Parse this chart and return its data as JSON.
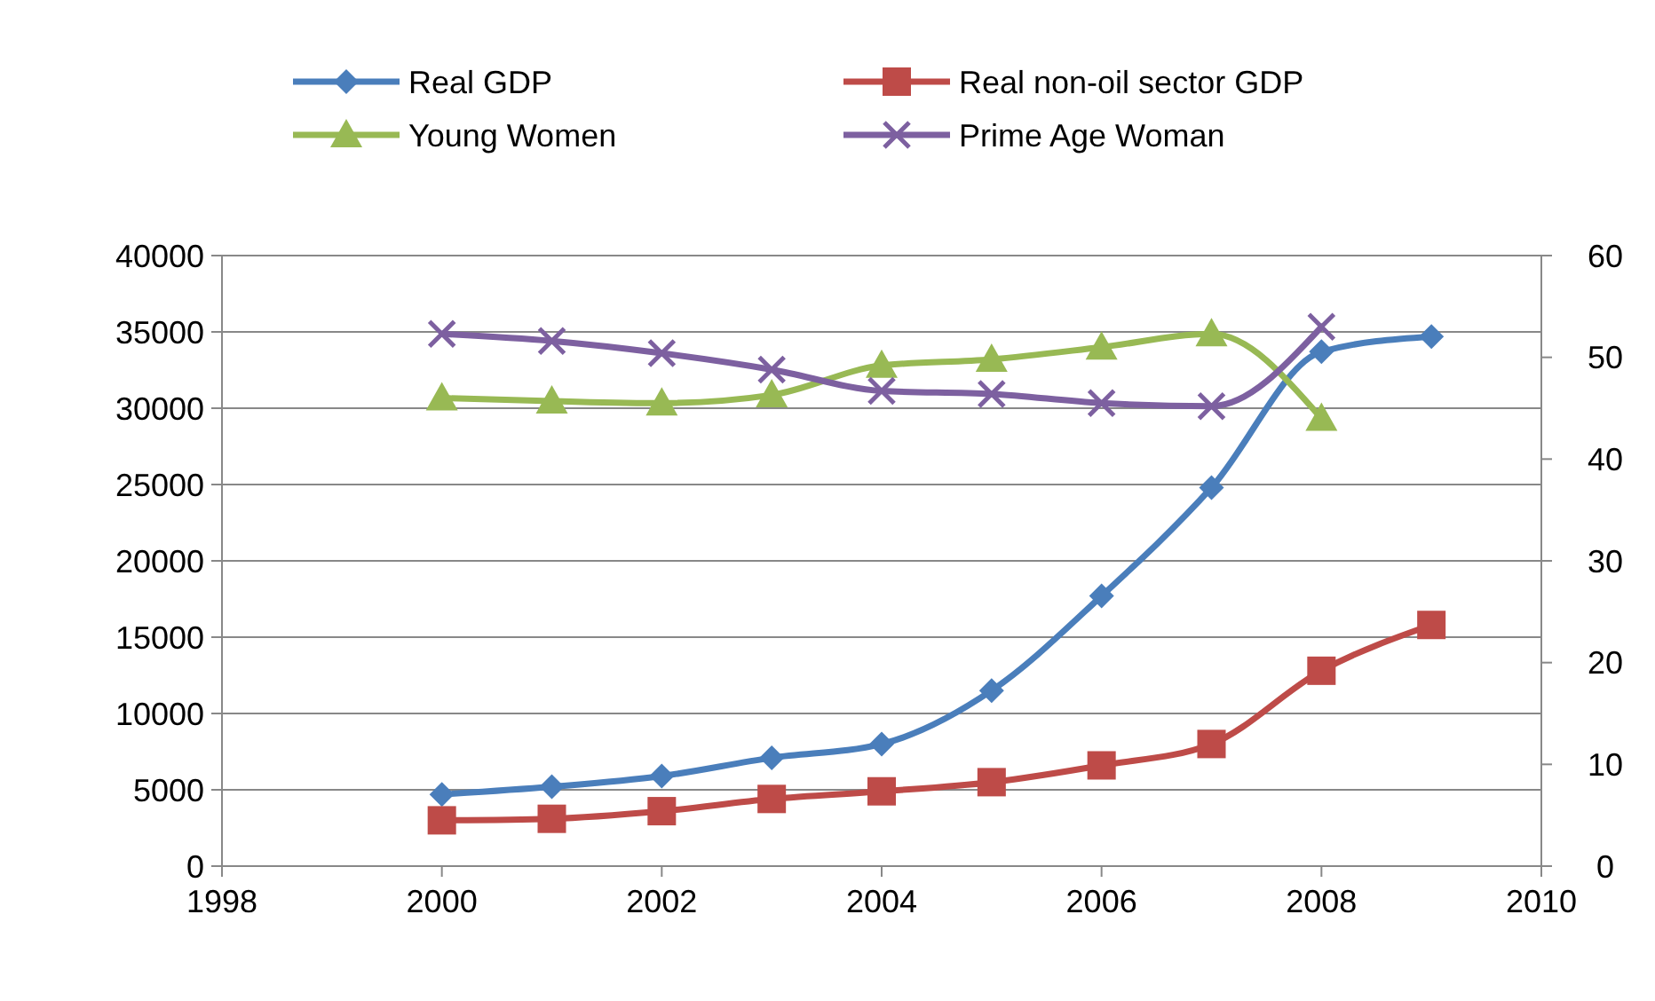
{
  "chart_data": {
    "type": "line",
    "x": [
      2000,
      2001,
      2002,
      2003,
      2004,
      2005,
      2006,
      2007,
      2008,
      2009
    ],
    "series": [
      {
        "name": "Real GDP",
        "color": "#4a7ebb",
        "marker": "diamond",
        "values": [
          4700,
          5200,
          5900,
          7100,
          8000,
          11500,
          17700,
          24800,
          33700,
          34700
        ]
      },
      {
        "name": "Real non-oil sector GDP",
        "color": "#be4b48",
        "marker": "square",
        "values": [
          3000,
          3100,
          3600,
          4400,
          4900,
          5500,
          6600,
          8000,
          12800,
          15800
        ]
      },
      {
        "name": "Young Women",
        "color": "#98b954",
        "marker": "triangle",
        "axis": "y2",
        "values": [
          46,
          45.7,
          45.5,
          46.3,
          49.2,
          49.8,
          51,
          52.3,
          44,
          null
        ]
      },
      {
        "name": "Prime Age Woman",
        "color": "#7d60a0",
        "marker": "cross",
        "axis": "y2",
        "values": [
          52.3,
          51.6,
          50.4,
          48.8,
          46.7,
          46.4,
          45.5,
          45.2,
          53,
          null
        ]
      }
    ],
    "xlim": [
      1998,
      2010
    ],
    "xticks": [
      1998,
      2000,
      2002,
      2004,
      2006,
      2008,
      2010
    ],
    "ylim": [
      0,
      40000
    ],
    "yticks": [
      0,
      5000,
      10000,
      15000,
      20000,
      25000,
      30000,
      35000,
      40000
    ],
    "y2lim": [
      0,
      60
    ],
    "y2ticks": [
      0,
      10,
      20,
      30,
      40,
      50,
      60
    ],
    "grid": "y",
    "legend": "top"
  }
}
